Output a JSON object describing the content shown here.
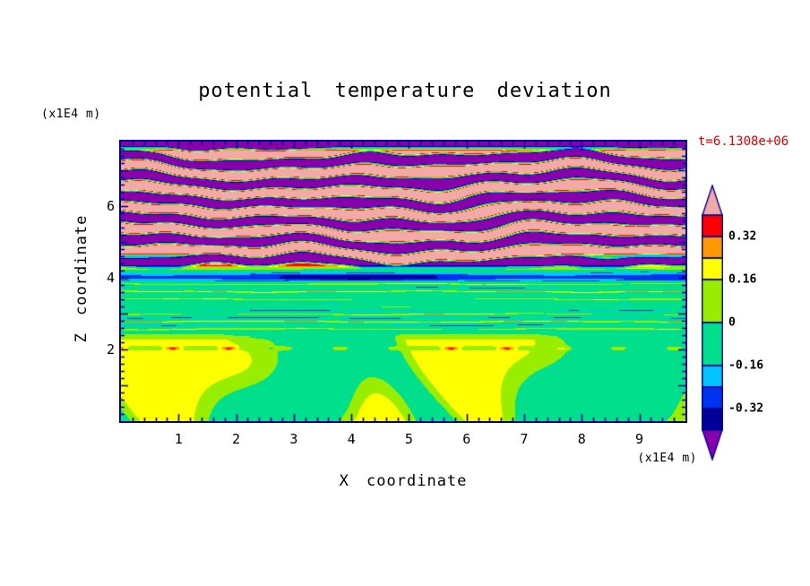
{
  "page": {
    "background": "#ffffff"
  },
  "chart": {
    "title": "potential temperature deviation",
    "timestamp": "t=6.1308e+06",
    "timestamp_color": "#e00000",
    "frame_color": "#000099",
    "x_axis": {
      "label": "X coordinate",
      "units": "(x1E4 m)",
      "tick_labels": [
        "1",
        "2",
        "3",
        "4",
        "5",
        "6",
        "7",
        "8",
        "9"
      ],
      "tick_values": [
        1,
        2,
        3,
        4,
        5,
        6,
        7,
        8,
        9
      ],
      "range": [
        0,
        9.8
      ],
      "minor_step": 0.2
    },
    "z_axis": {
      "label": "Z coordinate",
      "units": "(x1E4 m)",
      "tick_labels": [
        "2",
        "4",
        "6"
      ],
      "tick_values": [
        2,
        4,
        6
      ],
      "range": [
        0,
        7.8
      ],
      "minor_step": 0.2
    }
  },
  "chart_data": {
    "type": "heatmap",
    "title": "potential temperature deviation",
    "xlabel": "X coordinate",
    "ylabel": "Z coordinate",
    "x_units": "(x1E4 m)",
    "y_units": "(x1E4 m)",
    "annotation": "t=6.1308e+06",
    "xlim": [
      0,
      9.8
    ],
    "ylim": [
      0,
      7.8
    ],
    "x_ticks": [
      1,
      2,
      3,
      4,
      5,
      6,
      7,
      8,
      9
    ],
    "y_ticks": [
      2,
      4,
      6
    ],
    "grid": false,
    "legend_position": "right-colorbar",
    "levels": [
      0.4,
      0.32,
      0.24,
      0.16,
      0,
      -0.16,
      -0.24,
      -0.32,
      -0.4
    ],
    "colorbar_tick_labels": [
      "0.32",
      "0.16",
      "0",
      "-0.16",
      "-0.32"
    ],
    "colorbar_tick_values": [
      0.32,
      0.16,
      0,
      -0.16,
      -0.32
    ],
    "palette": {
      "pink": "#f2a9a9",
      "red": "#ff0000",
      "orange": "#ff9900",
      "yellow": "#ffff00",
      "yellow_green": "#99ee00",
      "spring_green": "#00df8c",
      "cyan": "#00c4ff",
      "blue": "#0033ee",
      "navy": "#000099",
      "purple": "#8800aa"
    },
    "field_model": {
      "bottom_layer": {
        "z_range": [
          0,
          2.4
        ],
        "base_value": -0.05,
        "patch_value": 0.12
      },
      "streak_layer": {
        "z_range": [
          2.4,
          3.9
        ],
        "base_value": -0.045,
        "positive_streak_value": 0.3,
        "negative_streak_value": -0.26
      },
      "band_layer": {
        "z_center": 4.02,
        "value": -0.3
      },
      "stratified_layer": {
        "z_range": [
          4.3,
          7.8
        ],
        "amplitude": 0.55
      }
    }
  }
}
